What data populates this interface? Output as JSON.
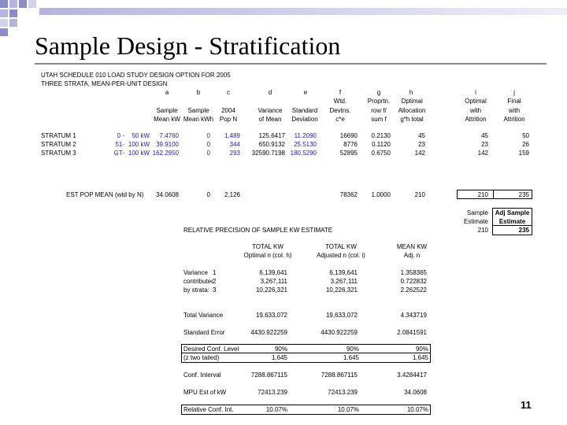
{
  "slide": {
    "title": "Sample Design - Stratification",
    "page_number": "11",
    "accent_color": "#8c8cc8"
  },
  "sheet": {
    "heading1": "UTAH SCHEDULE 010 LOAD STUDY DESIGN OPTION FOR 2005",
    "heading2": "THREE STRATA, MEAN-PER-UNIT DESIGN",
    "col_letters": [
      "a",
      "b",
      "c",
      "d",
      "e",
      "f",
      "g",
      "h",
      "i",
      "j"
    ],
    "hdr_row1": {
      "f": "Wtd.",
      "g": "Proprtn.",
      "h": "Optimal",
      "i": "Optimal",
      "j": "Final"
    },
    "hdr_row2": {
      "a": "Sample",
      "b": "Sample",
      "c": "2004",
      "d": "Variance",
      "e": "Standard",
      "f": "Devtns.",
      "g": "row f/",
      "h": "Allocation",
      "i": "with",
      "j": "with"
    },
    "hdr_row3": {
      "a": "Mean kW",
      "b": "Mean kWh",
      "c": "Pop N",
      "d": "of Mean",
      "e": "Deviation",
      "f": "c*e",
      "g": "sum f",
      "h": "g*h total",
      "i": "Attrition",
      "j": "Attrition"
    },
    "strata": [
      {
        "name": "STRATUM 1",
        "lo": "0 -",
        "hi": "50 kW",
        "a": "7.4760",
        "b": "0",
        "c": "1,489",
        "d": "125.6417",
        "e": "11.2090",
        "f": "16690",
        "g": "0.2130",
        "h": "45",
        "i": "45",
        "j": "50"
      },
      {
        "name": "STRATUM 2",
        "lo": "51-",
        "hi": "100 kW",
        "a": "39.9100",
        "b": "0",
        "c": "344",
        "d": "650.9132",
        "e": "25.5130",
        "f": "8776",
        "g": "0.1120",
        "h": "23",
        "i": "23",
        "j": "26"
      },
      {
        "name": "STRATUM 3",
        "lo": "GT-",
        "hi": "100 kW",
        "a": "162.2950",
        "b": "0",
        "c": "293",
        "d": "32590.7198",
        "e": "180.5290",
        "f": "52895",
        "g": "0.6750",
        "h": "142",
        "i": "142",
        "j": "159"
      }
    ],
    "est": {
      "label": "EST POP MEAN (wtd by N)",
      "a": "34.0608",
      "b": "0",
      "c": "2,126",
      "f": "78362",
      "g": "1.0000",
      "h": "210",
      "i": "210",
      "j": "235"
    },
    "sample_label": "Sample",
    "estimate_label": "Estimate",
    "adj_label1": "Adj Sample",
    "adj_label2": "Estimate",
    "sample_value": "210",
    "adj_value": "235"
  },
  "precision": {
    "title": "RELATIVE PRECISION OF SAMPLE KW ESTIMATE",
    "col1_h1": "TOTAL KW",
    "col1_h2": "Optimal n (col. h)",
    "col2_h1": "TOTAL KW",
    "col2_h2": "Adjusted n (col. i)",
    "col3_h1": "MEAN KW",
    "col3_h2": "Adj. n",
    "rows": [
      {
        "label": "Variance",
        "num": "1",
        "v1": "6,139,641",
        "v2": "6,139,641",
        "v3": "1.358365"
      },
      {
        "label": "contributed",
        "num": "2",
        "v1": "3,267,111",
        "v2": "3,267,111",
        "v3": "0.722832"
      },
      {
        "label": "by strata:",
        "num": "3",
        "v1": "10,226,321",
        "v2": "10,226,321",
        "v3": "2.262522"
      }
    ],
    "total_variance": {
      "label": "Total Variance",
      "v1": "19,633,072",
      "v2": "19,633,072",
      "v3": "4.343719"
    },
    "std_error": {
      "label": "Standard Error",
      "v1": "4430.922259",
      "v2": "4430.922259",
      "v3": "2.0841591"
    },
    "conf_level": {
      "label": "Desired Conf. Level",
      "v1": "90%",
      "v2": "90%",
      "v3": "90%"
    },
    "z_value": {
      "label": "(z two tailed)",
      "v1": "1.645",
      "v2": "1.645",
      "v3": "1.645"
    },
    "conf_interval": {
      "label": "Conf. Interval",
      "v1": "7288.867115",
      "v2": "7288.867115",
      "v3": "3.4284417"
    },
    "mpu": {
      "label": "MPU Est of kW",
      "v1": "72413.239",
      "v2": "72413.239",
      "v3": "34.0608"
    },
    "rel_conf": {
      "label": "Relative Conf. Int.",
      "v1": "10.07%",
      "v2": "10.07%",
      "v3": "10.07%"
    }
  }
}
